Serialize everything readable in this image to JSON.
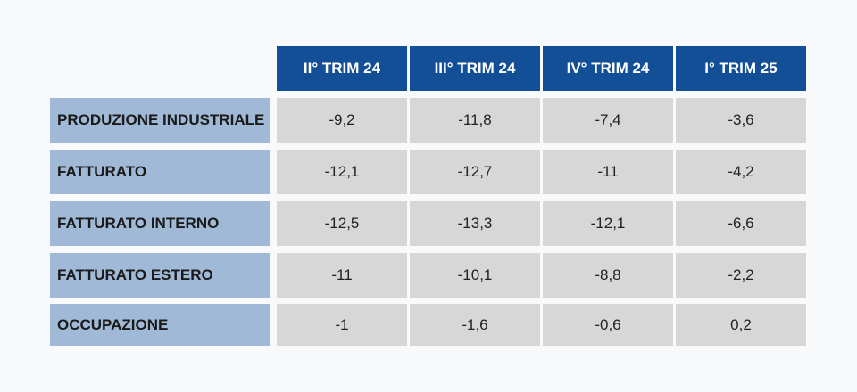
{
  "chart_data": {
    "type": "table",
    "columns": [
      "II° TRIM 24",
      "III° TRIM 24",
      "IV° TRIM 24",
      "I° TRIM 25"
    ],
    "rows": [
      {
        "label": "PRODUZIONE INDUSTRIALE",
        "values": [
          "-9,2",
          "-11,8",
          "-7,4",
          "-3,6"
        ]
      },
      {
        "label": "FATTURATO",
        "values": [
          "-12,1",
          "-12,7",
          "-11",
          "-4,2"
        ]
      },
      {
        "label": "FATTURATO INTERNO",
        "values": [
          "-12,5",
          "-13,3",
          "-12,1",
          "-6,6"
        ]
      },
      {
        "label": "FATTURATO ESTERO",
        "values": [
          "-11",
          "-10,1",
          "-8,8",
          "-2,2"
        ]
      },
      {
        "label": "OCCUPAZIONE",
        "values": [
          "-1",
          "-1,6",
          "-0,6",
          "0,2"
        ]
      }
    ]
  },
  "colors": {
    "header_bg": "#134f96",
    "row_label_bg": "#9fb9d6",
    "cell_bg": "#d7d7d7",
    "page_bg": "#f8f9fb"
  }
}
